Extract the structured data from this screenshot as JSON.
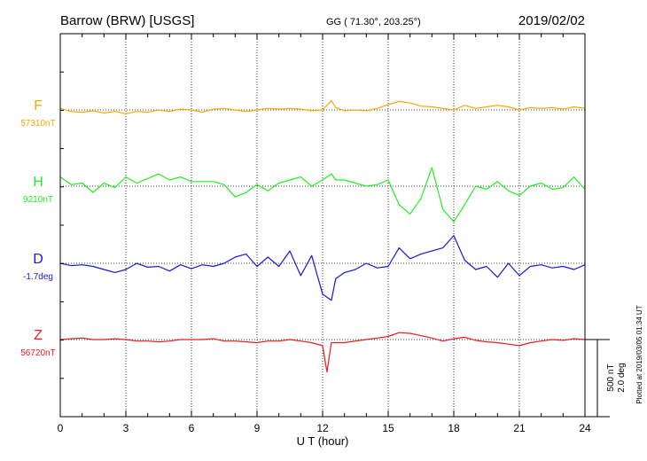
{
  "header": {
    "station": "Barrow (BRW)  [USGS]",
    "coords": "GG ( 71.30°, 203.25°)",
    "date": "2019/02/02"
  },
  "chart_data": {
    "type": "line",
    "xlabel": "U T (hour)",
    "xlim": [
      0,
      24
    ],
    "xticks": [
      0,
      3,
      6,
      9,
      12,
      15,
      18,
      21,
      24
    ],
    "scale_bar": {
      "line1": "500 nT",
      "line2": "2.0 deg"
    },
    "footer": "Plotted at 2019/03/05 01:34 UT",
    "series": [
      {
        "name": "F",
        "baseline": "57310nT",
        "color": "#f5a800",
        "x": [
          0,
          0.5,
          1,
          1.5,
          2,
          2.5,
          3,
          3.5,
          4,
          4.5,
          5,
          5.5,
          6,
          6.5,
          7,
          7.5,
          8,
          8.5,
          9,
          9.5,
          10,
          10.5,
          11,
          11.5,
          12,
          12.2,
          12.4,
          12.6,
          13,
          13.5,
          14,
          14.5,
          15,
          15.5,
          16,
          16.5,
          17,
          17.5,
          18,
          18.5,
          19,
          19.5,
          20,
          20.5,
          21,
          21.5,
          22,
          22.5,
          23,
          23.5,
          24
        ],
        "y": [
          10,
          -10,
          -15,
          -5,
          -20,
          -10,
          -25,
          -10,
          -15,
          0,
          -10,
          5,
          0,
          -15,
          5,
          10,
          0,
          -10,
          0,
          10,
          5,
          10,
          5,
          -5,
          0,
          30,
          60,
          15,
          -5,
          0,
          -5,
          10,
          35,
          55,
          45,
          25,
          20,
          10,
          0,
          30,
          10,
          20,
          30,
          20,
          0,
          15,
          10,
          15,
          5,
          20,
          10
        ]
      },
      {
        "name": "H",
        "baseline": "9210nT",
        "color": "#22ee22",
        "x": [
          0,
          0.5,
          1,
          1.5,
          2,
          2.5,
          3,
          3.5,
          4,
          4.5,
          5,
          5.5,
          6,
          6.5,
          7,
          7.5,
          8,
          8.5,
          9,
          9.5,
          10,
          10.5,
          11,
          11.5,
          12,
          12.2,
          12.4,
          12.6,
          13,
          13.5,
          14,
          14.5,
          15,
          15.5,
          16,
          16.5,
          17,
          17.5,
          18,
          18.5,
          19,
          19.5,
          20,
          20.5,
          21,
          21.5,
          22,
          22.5,
          23,
          23.5,
          24
        ],
        "y": [
          60,
          10,
          20,
          -40,
          20,
          -10,
          60,
          20,
          50,
          80,
          40,
          60,
          30,
          30,
          30,
          10,
          -70,
          -40,
          10,
          -30,
          20,
          40,
          60,
          0,
          40,
          60,
          80,
          40,
          40,
          20,
          0,
          10,
          40,
          -120,
          -180,
          -80,
          120,
          -150,
          -230,
          -120,
          0,
          -20,
          30,
          -30,
          -60,
          0,
          20,
          -20,
          -10,
          60,
          -20
        ]
      },
      {
        "name": "D",
        "baseline": "-1.7deg",
        "color": "#1818d8",
        "x": [
          0,
          0.5,
          1,
          1.5,
          2,
          2.5,
          3,
          3.5,
          4,
          4.5,
          5,
          5.5,
          6,
          6.5,
          7,
          7.5,
          8,
          8.5,
          9,
          9.5,
          10,
          10.5,
          11,
          11.5,
          12,
          12.2,
          12.4,
          12.6,
          13,
          13.5,
          14,
          14.5,
          15,
          15.5,
          16,
          16.5,
          17,
          17.5,
          18,
          18.5,
          19,
          19.5,
          20,
          20.5,
          21,
          21.5,
          22,
          22.5,
          23,
          23.5,
          24
        ],
        "y": [
          0,
          -15,
          -10,
          -20,
          -40,
          -60,
          -40,
          0,
          -25,
          -20,
          -50,
          -10,
          -35,
          -10,
          -20,
          0,
          40,
          60,
          -20,
          40,
          -20,
          80,
          -80,
          50,
          -200,
          -220,
          -240,
          -100,
          -60,
          -40,
          0,
          -30,
          -20,
          100,
          30,
          60,
          80,
          100,
          180,
          20,
          -40,
          -20,
          -90,
          0,
          -80,
          -20,
          -10,
          -30,
          -20,
          -40,
          -10
        ]
      },
      {
        "name": "Z",
        "baseline": "56720nT",
        "color": "#e81c1c",
        "x": [
          0,
          0.5,
          1,
          1.5,
          2,
          2.5,
          3,
          3.5,
          4,
          4.5,
          5,
          5.5,
          6,
          6.5,
          7,
          7.5,
          8,
          8.5,
          9,
          9.5,
          10,
          10.5,
          11,
          11.5,
          12,
          12.2,
          12.4,
          12.6,
          13,
          13.5,
          14,
          14.5,
          15,
          15.5,
          16,
          16.5,
          17,
          17.5,
          18,
          18.5,
          19,
          19.5,
          20,
          20.5,
          21,
          21.5,
          22,
          22.5,
          23,
          23.5,
          24
        ],
        "y": [
          0,
          5,
          10,
          0,
          0,
          5,
          0,
          -10,
          -10,
          -15,
          -10,
          0,
          0,
          0,
          5,
          -10,
          -10,
          -15,
          -20,
          -10,
          -10,
          0,
          -10,
          -20,
          -40,
          -210,
          -20,
          -20,
          -20,
          -10,
          0,
          10,
          20,
          45,
          40,
          25,
          10,
          -10,
          5,
          15,
          -5,
          -15,
          -20,
          -30,
          -40,
          -20,
          -10,
          0,
          -5,
          5,
          0
        ]
      }
    ]
  }
}
